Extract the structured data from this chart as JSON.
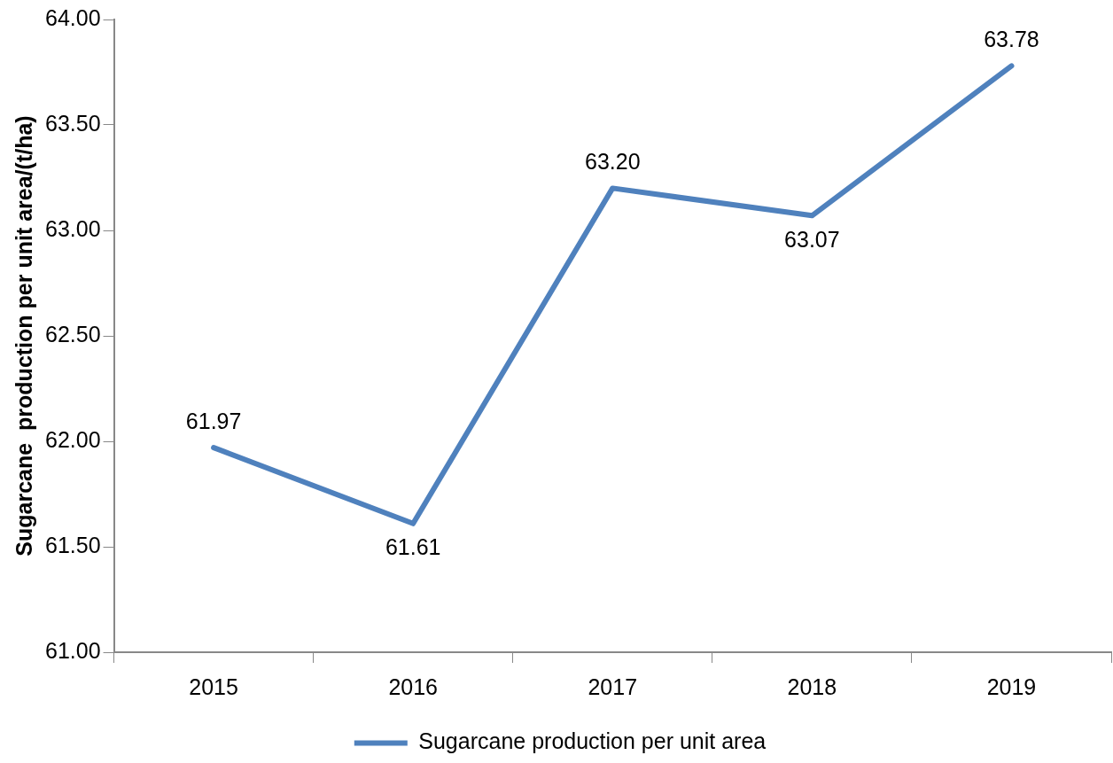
{
  "chart_data": {
    "type": "line",
    "ylabel": "Sugarcane  production per unit area/(t/ha)",
    "categories": [
      "2015",
      "2016",
      "2017",
      "2018",
      "2019"
    ],
    "series": [
      {
        "name": "Sugarcane production per unit area",
        "color": "#4f81bd",
        "values": [
          61.97,
          61.61,
          63.2,
          63.07,
          63.78
        ],
        "value_labels": [
          "61.97",
          "61.61",
          "63.20",
          "63.07",
          "63.78"
        ]
      }
    ],
    "ylim": [
      61,
      64
    ],
    "yticks": [
      {
        "value": 61,
        "label": "61.00"
      },
      {
        "value": 61.5,
        "label": "61.50"
      },
      {
        "value": 62,
        "label": "62.00"
      },
      {
        "value": 62.5,
        "label": "62.50"
      },
      {
        "value": 63,
        "label": "63.00"
      },
      {
        "value": 63.5,
        "label": "63.50"
      },
      {
        "value": 64,
        "label": "64.00"
      }
    ],
    "grid": false,
    "legend": "bottom",
    "marker": "none",
    "line_style": "solid"
  }
}
